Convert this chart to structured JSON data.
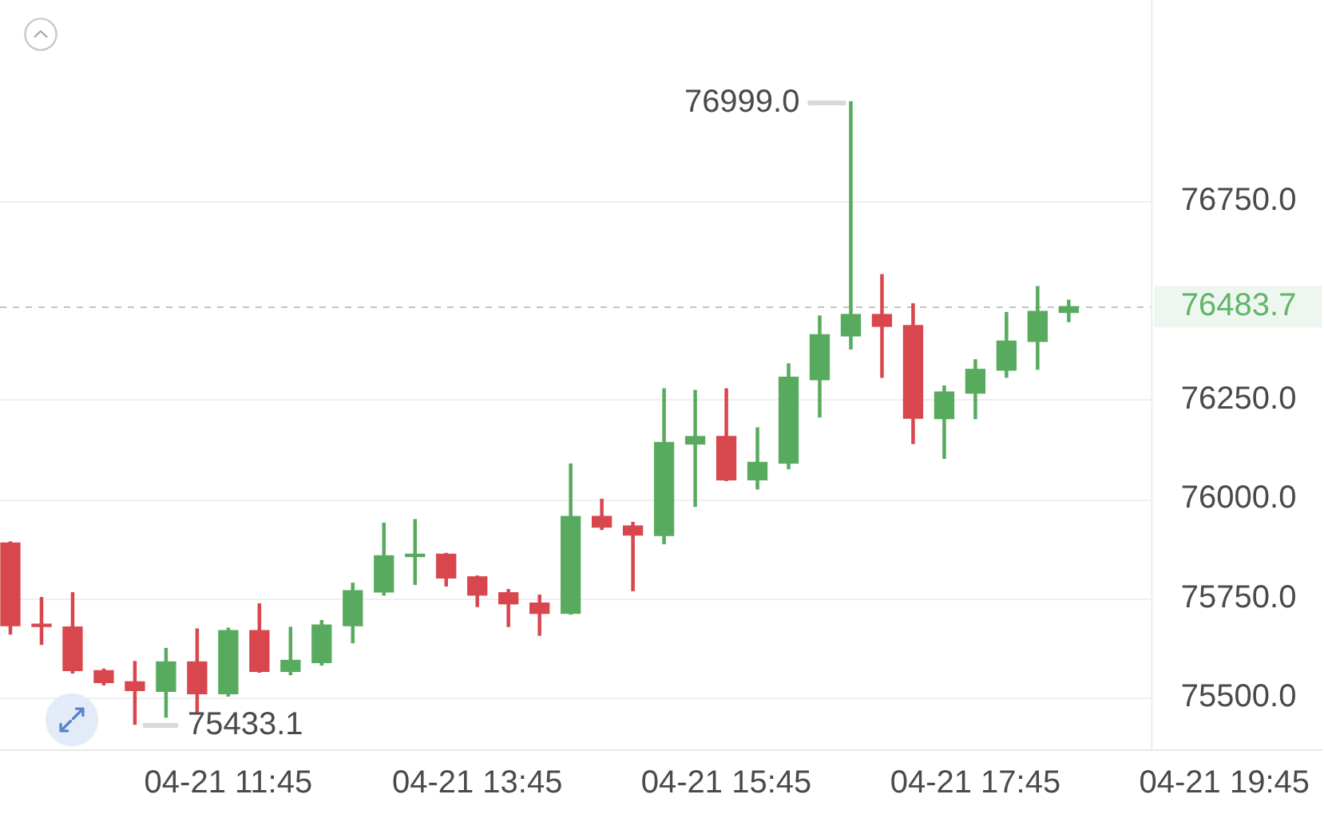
{
  "chart_data": {
    "type": "candlestick",
    "x": [
      "--04-21T10:00",
      "--04-21T10:15",
      "--04-21T10:30",
      "--04-21T10:45",
      "--04-21T11:00",
      "--04-21T11:15",
      "--04-21T11:30",
      "--04-21T11:45",
      "--04-21T12:00",
      "--04-21T12:15",
      "--04-21T12:30",
      "--04-21T12:45",
      "--04-21T13:00",
      "--04-21T13:15",
      "--04-21T13:30",
      "--04-21T13:45",
      "--04-21T14:00",
      "--04-21T14:15",
      "--04-21T14:30",
      "--04-21T14:45",
      "--04-21T15:00",
      "--04-21T15:15",
      "--04-21T15:30",
      "--04-21T15:45",
      "--04-21T16:00",
      "--04-21T16:15",
      "--04-21T16:30",
      "--04-21T16:45",
      "--04-21T17:00",
      "--04-21T17:15",
      "--04-21T17:30",
      "--04-21T17:45",
      "--04-21T18:00",
      "--04-21T18:15",
      "--04-21T18:30"
    ],
    "ohlc": [
      [
        75889,
        75892,
        75660,
        75681
      ],
      [
        75683,
        75752,
        75634,
        75679
      ],
      [
        75678,
        75764,
        75562,
        75568
      ],
      [
        75568,
        75572,
        75532,
        75538
      ],
      [
        75540,
        75591,
        75433.1,
        75518
      ],
      [
        75516,
        75624,
        75451,
        75590
      ],
      [
        75590,
        75673,
        75464,
        75510
      ],
      [
        75510,
        75675,
        75504,
        75669
      ],
      [
        75669,
        75736,
        75564,
        75566
      ],
      [
        75566,
        75677,
        75558,
        75594
      ],
      [
        75588,
        75694,
        75582,
        75683
      ],
      [
        75681,
        75788,
        75638,
        75769
      ],
      [
        75766,
        75939,
        75758,
        75857
      ],
      [
        75855,
        75948,
        75785,
        75859
      ],
      [
        75861,
        75863,
        75781,
        75801
      ],
      [
        75804,
        75806,
        75729,
        75758
      ],
      [
        75764,
        75772,
        75679,
        75736
      ],
      [
        75738,
        75758,
        75657,
        75712
      ],
      [
        75712,
        76088,
        75710,
        75956
      ],
      [
        75956,
        75999,
        75923,
        75929
      ],
      [
        75932,
        75941,
        75769,
        75909
      ],
      [
        75908,
        76277,
        75887,
        76142
      ],
      [
        76138,
        76273,
        75981,
        76157
      ],
      [
        76157,
        76277,
        76046,
        76048
      ],
      [
        76048,
        76179,
        76025,
        76092
      ],
      [
        76090,
        76340,
        76076,
        76306
      ],
      [
        76300,
        76460,
        76206,
        76413
      ],
      [
        76410,
        76999.0,
        76377,
        76464
      ],
      [
        76464,
        76564,
        76306,
        76434
      ],
      [
        76436,
        76491,
        76139,
        76203
      ],
      [
        76202,
        76284,
        76102,
        76269
      ],
      [
        76266,
        76350,
        76202,
        76326
      ],
      [
        76324,
        76469,
        76306,
        76397
      ],
      [
        76396,
        76534,
        76326,
        76472
      ],
      [
        76469,
        76500,
        76446,
        76483.7
      ]
    ],
    "colors": [
      "#d8474e",
      "#d8474e",
      "#d8474e",
      "#d8474e",
      "#d8474e",
      "#58ab5e",
      "#d8474e",
      "#58ab5e",
      "#d8474e",
      "#58ab5e",
      "#58ab5e",
      "#58ab5e",
      "#58ab5e",
      "#58ab5e",
      "#d8474e",
      "#d8474e",
      "#d8474e",
      "#d8474e",
      "#58ab5e",
      "#d8474e",
      "#d8474e",
      "#58ab5e",
      "#58ab5e",
      "#d8474e",
      "#58ab5e",
      "#58ab5e",
      "#58ab5e",
      "#58ab5e",
      "#d8474e",
      "#d8474e",
      "#58ab5e",
      "#58ab5e",
      "#58ab5e",
      "#58ab5e",
      "#58ab5e"
    ],
    "xlim": [
      "--04-21T09:55",
      "--04-21T20:32"
    ],
    "xticks": [
      {
        "value": "--04-21T11:45",
        "label": "04-21 11:45"
      },
      {
        "value": "--04-21T13:45",
        "label": "04-21 13:45"
      },
      {
        "value": "--04-21T15:45",
        "label": "04-21 15:45"
      },
      {
        "value": "--04-21T17:45",
        "label": "04-21 17:45"
      },
      {
        "value": "--04-21T19:45",
        "label": "04-21 19:45"
      }
    ],
    "ylim": [
      75368,
      77255
    ],
    "yticks": [
      {
        "value": 75500,
        "label": "75500.0"
      },
      {
        "value": 75750,
        "label": "75750.0"
      },
      {
        "value": 76000,
        "label": "76000.0"
      },
      {
        "value": 76250,
        "label": "76250.0"
      },
      {
        "value": 76750,
        "label": "76750.0"
      }
    ],
    "grid": "y",
    "ref_lines": [
      {
        "axis": "y",
        "value": 76483.7,
        "label": "76483.7",
        "color": "#c4c4c4",
        "line_style": "dashed"
      }
    ],
    "annotations": [
      {
        "text": "76999.0",
        "x": "--04-21T16:45",
        "y": 76999.0
      },
      {
        "text": "75433.1",
        "x": "--04-21T11:00",
        "y": 75433.1
      }
    ]
  }
}
